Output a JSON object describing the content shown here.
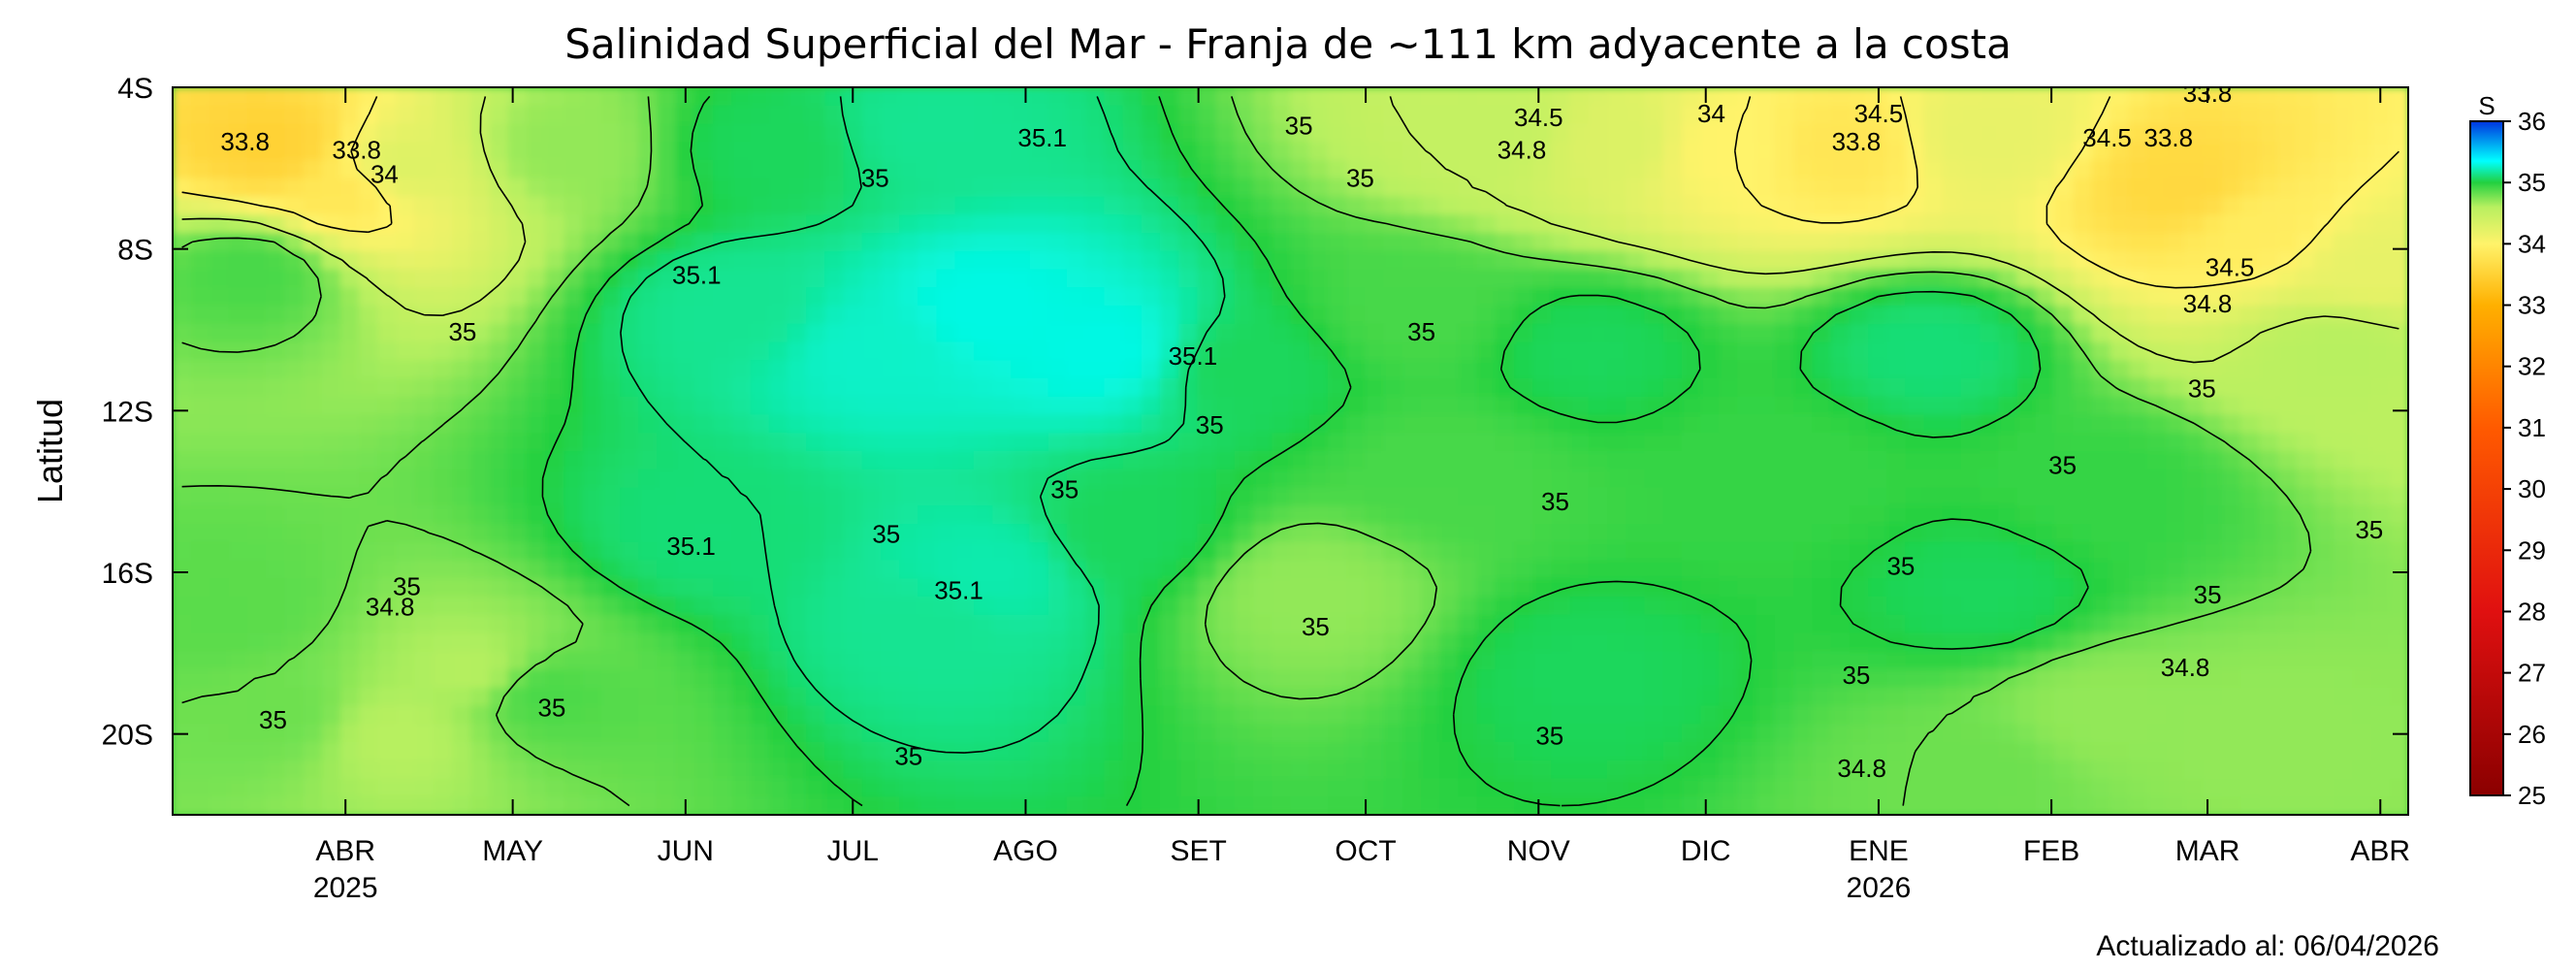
{
  "chart_data": {
    "type": "heatmap",
    "title": "Salinidad Superficial del Mar - Franja de ~111 km adyacente a la costa",
    "ylabel": "Latitud",
    "xlabel": "",
    "footer": "Actualizado al: 06/04/2026",
    "x_range": [
      "2025-03-01",
      "2026-04-06"
    ],
    "y_range": [
      -4,
      -22
    ],
    "y_ticks": [
      {
        "value": -4,
        "label": "4S"
      },
      {
        "value": -8,
        "label": "8S"
      },
      {
        "value": -12,
        "label": "12S"
      },
      {
        "value": -16,
        "label": "16S"
      },
      {
        "value": -20,
        "label": "20S"
      }
    ],
    "x_ticks": [
      {
        "date": "2025-04-01",
        "label": "ABR",
        "sublabel": "2025"
      },
      {
        "date": "2025-05-01",
        "label": "MAY",
        "sublabel": ""
      },
      {
        "date": "2025-06-01",
        "label": "JUN",
        "sublabel": ""
      },
      {
        "date": "2025-07-01",
        "label": "JUL",
        "sublabel": ""
      },
      {
        "date": "2025-08-01",
        "label": "AGO",
        "sublabel": ""
      },
      {
        "date": "2025-09-01",
        "label": "SET",
        "sublabel": ""
      },
      {
        "date": "2025-10-01",
        "label": "OCT",
        "sublabel": ""
      },
      {
        "date": "2025-11-01",
        "label": "NOV",
        "sublabel": ""
      },
      {
        "date": "2025-12-01",
        "label": "DIC",
        "sublabel": ""
      },
      {
        "date": "2026-01-01",
        "label": "ENE",
        "sublabel": "2026"
      },
      {
        "date": "2026-02-01",
        "label": "FEB",
        "sublabel": ""
      },
      {
        "date": "2026-03-01",
        "label": "MAR",
        "sublabel": ""
      },
      {
        "date": "2026-04-01",
        "label": "ABR",
        "sublabel": ""
      }
    ],
    "colorbar": {
      "label": "S",
      "range": [
        25,
        36
      ],
      "ticks": [
        25,
        26,
        27,
        28,
        29,
        30,
        31,
        32,
        33,
        34,
        35,
        36
      ],
      "colors": [
        "#8b0000",
        "#e01010",
        "#ff5a00",
        "#ffb000",
        "#fff36a",
        "#b8f060",
        "#22d040",
        "#00ffff",
        "#0033e0"
      ]
    },
    "features": [
      {
        "date": "2025-03-20",
        "lat": -5.5,
        "value": 33.5
      },
      {
        "date": "2025-04-01",
        "lat": -6.5,
        "value": 33.8
      },
      {
        "date": "2025-04-10",
        "lat": -6.0,
        "value": 34.3
      },
      {
        "date": "2025-03-15",
        "lat": -8.5,
        "value": 34.9
      },
      {
        "date": "2025-05-10",
        "lat": -5.5,
        "value": 34.7
      },
      {
        "date": "2025-04-25",
        "lat": -18.5,
        "value": 34.6
      },
      {
        "date": "2025-03-20",
        "lat": -19.5,
        "value": 34.8
      },
      {
        "date": "2025-04-10",
        "lat": -20.0,
        "value": 34.6
      },
      {
        "date": "2025-05-05",
        "lat": -19.0,
        "value": 34.9
      },
      {
        "date": "2025-03-10",
        "lat": -17.0,
        "value": 34.85
      },
      {
        "date": "2025-06-10",
        "lat": -9.5,
        "value": 35.15
      },
      {
        "date": "2025-07-05",
        "lat": -10.5,
        "value": 35.25
      },
      {
        "date": "2025-07-25",
        "lat": -9.5,
        "value": 35.3
      },
      {
        "date": "2025-08-15",
        "lat": -10.5,
        "value": 35.3
      },
      {
        "date": "2025-07-15",
        "lat": -5.0,
        "value": 35.15
      },
      {
        "date": "2025-06-15",
        "lat": -5.5,
        "value": 35.05
      },
      {
        "date": "2025-07-25",
        "lat": -16.0,
        "value": 35.2
      },
      {
        "date": "2025-07-15",
        "lat": -17.3,
        "value": 35.15
      },
      {
        "date": "2025-06-05",
        "lat": -15.0,
        "value": 35.1
      },
      {
        "date": "2025-08-20",
        "lat": -15.0,
        "value": 35.05
      },
      {
        "date": "2025-09-10",
        "lat": -11.0,
        "value": 35.05
      },
      {
        "date": "2025-10-15",
        "lat": -13.5,
        "value": 34.9
      },
      {
        "date": "2025-09-20",
        "lat": -16.5,
        "value": 34.7
      },
      {
        "date": "2025-10-10",
        "lat": -9.5,
        "value": 34.9
      },
      {
        "date": "2025-11-10",
        "lat": -10.5,
        "value": 35.05
      },
      {
        "date": "2025-10-25",
        "lat": -5.0,
        "value": 34.5
      },
      {
        "date": "2025-11-15",
        "lat": -5.3,
        "value": 34.3
      },
      {
        "date": "2025-12-05",
        "lat": -5.5,
        "value": 34.0
      },
      {
        "date": "2025-12-25",
        "lat": -5.5,
        "value": 33.8
      },
      {
        "date": "2026-01-20",
        "lat": -5.2,
        "value": 34.2
      },
      {
        "date": "2026-02-25",
        "lat": -6.5,
        "value": 33.6
      },
      {
        "date": "2026-03-10",
        "lat": -7.5,
        "value": 33.9
      },
      {
        "date": "2026-03-30",
        "lat": -8.5,
        "value": 34.2
      },
      {
        "date": "2026-03-25",
        "lat": -10.5,
        "value": 34.6
      },
      {
        "date": "2026-01-10",
        "lat": -10.5,
        "value": 35.1
      },
      {
        "date": "2026-01-20",
        "lat": -16.5,
        "value": 35.05
      },
      {
        "date": "2026-02-10",
        "lat": -19.5,
        "value": 34.7
      },
      {
        "date": "2026-03-10",
        "lat": -20.0,
        "value": 34.7
      },
      {
        "date": "2026-01-20",
        "lat": -21.0,
        "value": 34.8
      },
      {
        "date": "2025-11-10",
        "lat": -18.5,
        "value": 35.05
      },
      {
        "date": "2025-12-15",
        "lat": -13.5,
        "value": 34.95
      },
      {
        "date": "2026-02-10",
        "lat": -14.0,
        "value": 34.95
      }
    ],
    "contour_labels": [
      {
        "text": "33.8",
        "date": "2025-03-14",
        "lat": -5.4
      },
      {
        "text": "33.8",
        "date": "2025-04-03",
        "lat": -5.6
      },
      {
        "text": "34",
        "date": "2025-04-08",
        "lat": -6.2
      },
      {
        "text": "35.1",
        "date": "2025-08-04",
        "lat": -5.3
      },
      {
        "text": "35",
        "date": "2025-07-05",
        "lat": -6.3
      },
      {
        "text": "35",
        "date": "2025-09-19",
        "lat": -5.0
      },
      {
        "text": "34.5",
        "date": "2025-11-01",
        "lat": -4.8
      },
      {
        "text": "34.8",
        "date": "2025-10-29",
        "lat": -5.6
      },
      {
        "text": "34",
        "date": "2025-12-02",
        "lat": -4.7
      },
      {
        "text": "34.5",
        "date": "2026-01-01",
        "lat": -4.7
      },
      {
        "text": "33.8",
        "date": "2025-12-28",
        "lat": -5.4
      },
      {
        "text": "34.5",
        "date": "2026-02-11",
        "lat": -5.3
      },
      {
        "text": "33.8",
        "date": "2026-03-01",
        "lat": -4.2
      },
      {
        "text": "33.8",
        "date": "2026-02-22",
        "lat": -5.3
      },
      {
        "text": "35",
        "date": "2025-09-30",
        "lat": -6.3
      },
      {
        "text": "35.1",
        "date": "2025-06-03",
        "lat": -8.7
      },
      {
        "text": "35",
        "date": "2025-04-22",
        "lat": -10.1
      },
      {
        "text": "35",
        "date": "2025-10-11",
        "lat": -10.1
      },
      {
        "text": "35.1",
        "date": "2025-08-31",
        "lat": -10.7
      },
      {
        "text": "35",
        "date": "2025-09-03",
        "lat": -12.4
      },
      {
        "text": "35",
        "date": "2025-08-08",
        "lat": -14.0
      },
      {
        "text": "35",
        "date": "2025-11-04",
        "lat": -14.3
      },
      {
        "text": "34.5",
        "date": "2026-03-05",
        "lat": -8.5
      },
      {
        "text": "34.8",
        "date": "2026-03-01",
        "lat": -9.4
      },
      {
        "text": "35",
        "date": "2026-02-28",
        "lat": -11.5
      },
      {
        "text": "35",
        "date": "2026-02-03",
        "lat": -13.4
      },
      {
        "text": "35",
        "date": "2026-03-30",
        "lat": -15.0
      },
      {
        "text": "35",
        "date": "2025-07-07",
        "lat": -15.1
      },
      {
        "text": "35.1",
        "date": "2025-06-02",
        "lat": -15.4
      },
      {
        "text": "35.1",
        "date": "2025-07-20",
        "lat": -16.5
      },
      {
        "text": "35",
        "date": "2025-04-12",
        "lat": -16.4
      },
      {
        "text": "34.8",
        "date": "2025-04-09",
        "lat": -16.9
      },
      {
        "text": "35",
        "date": "2025-09-22",
        "lat": -17.4
      },
      {
        "text": "35",
        "date": "2026-01-05",
        "lat": -15.9
      },
      {
        "text": "35",
        "date": "2026-03-01",
        "lat": -16.6
      },
      {
        "text": "34.8",
        "date": "2026-02-25",
        "lat": -18.4
      },
      {
        "text": "35",
        "date": "2025-12-28",
        "lat": -18.6
      },
      {
        "text": "35",
        "date": "2025-03-19",
        "lat": -19.7
      },
      {
        "text": "35",
        "date": "2025-05-08",
        "lat": -19.4
      },
      {
        "text": "35",
        "date": "2025-11-03",
        "lat": -20.1
      },
      {
        "text": "35",
        "date": "2025-07-11",
        "lat": -20.6
      },
      {
        "text": "34.8",
        "date": "2025-12-29",
        "lat": -20.9
      }
    ]
  }
}
